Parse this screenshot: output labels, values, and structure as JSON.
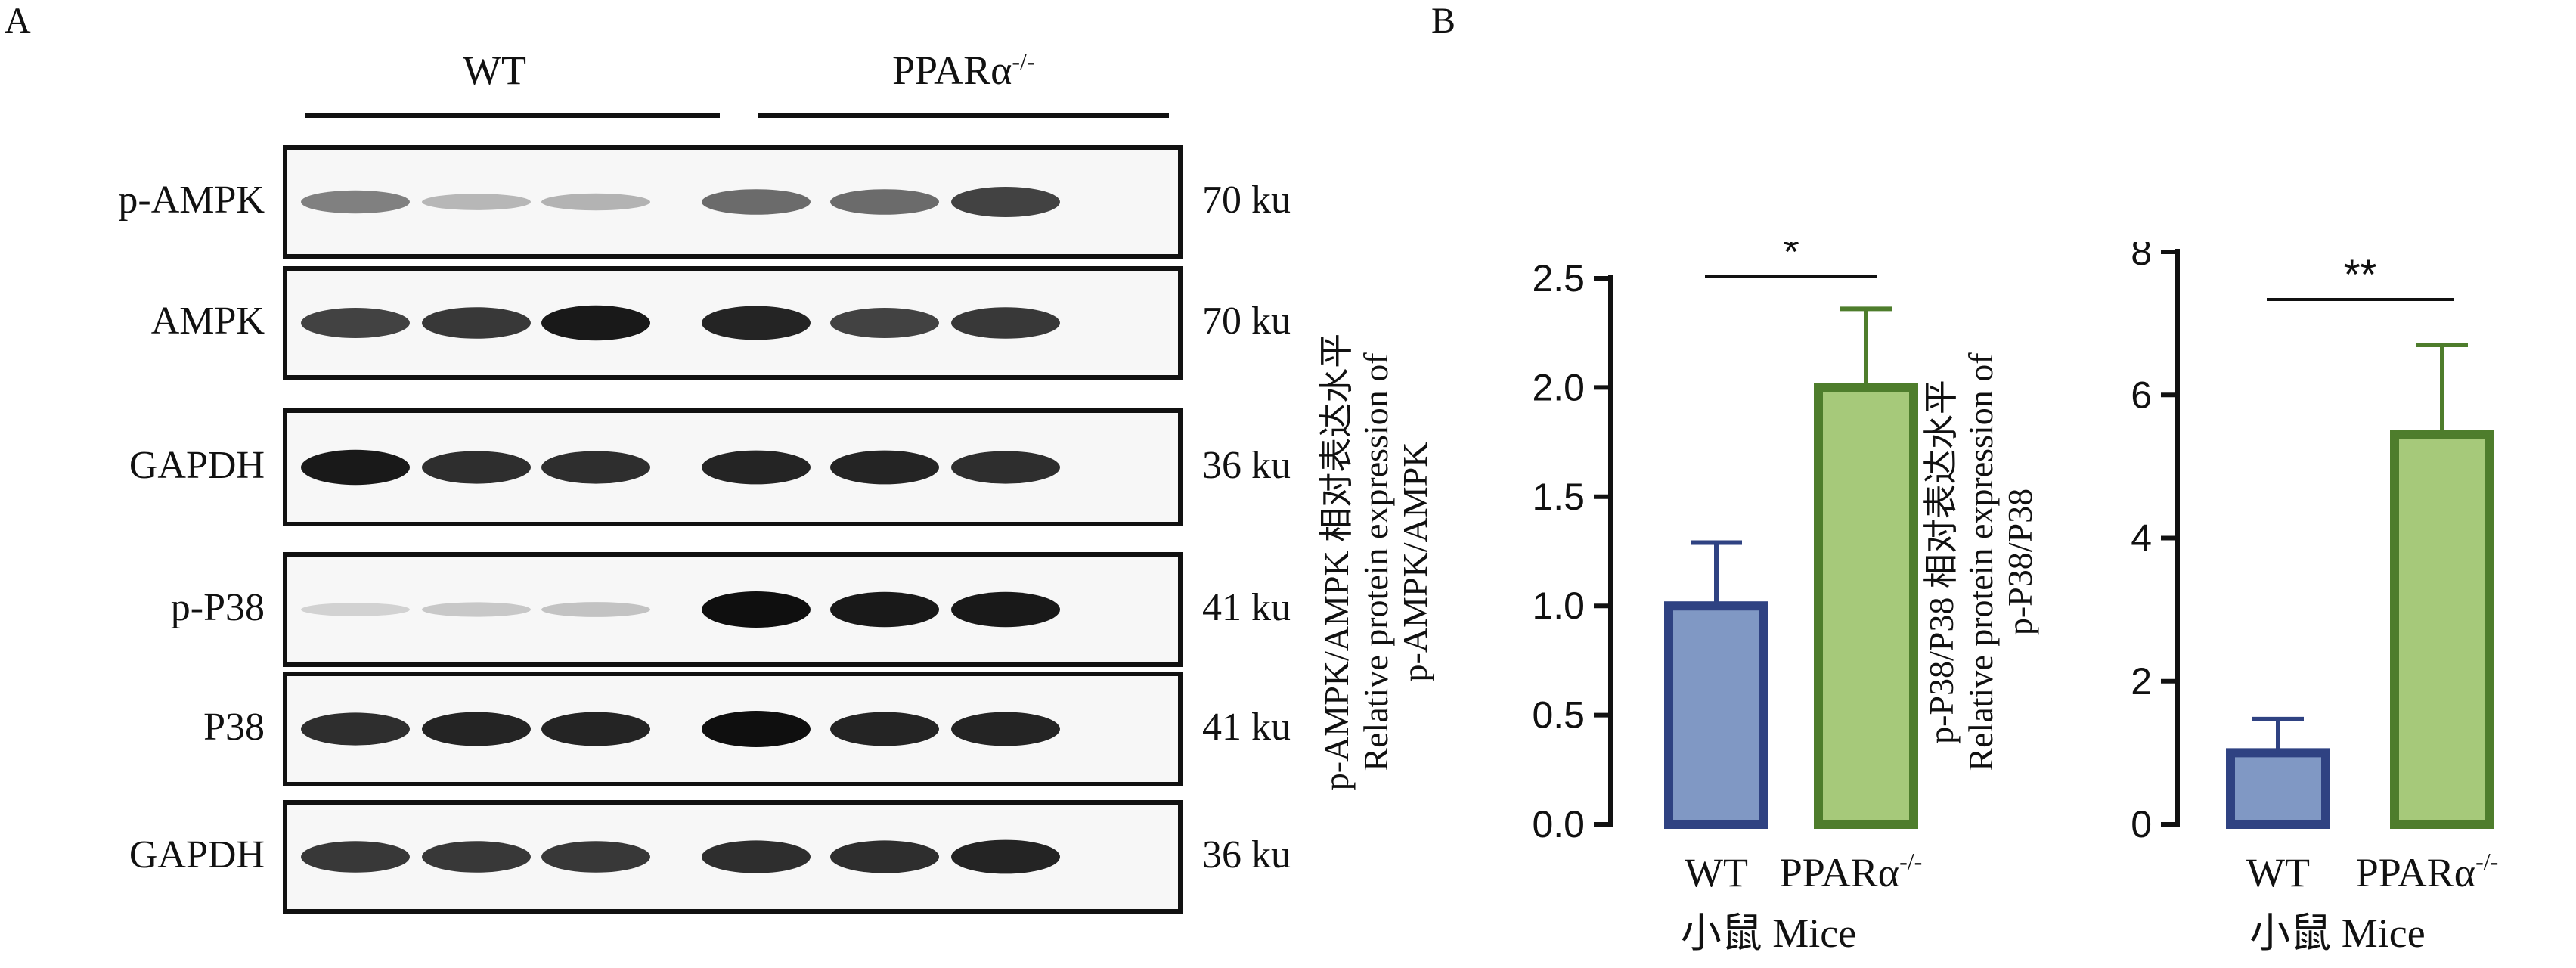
{
  "panels": {
    "a": "A",
    "b": "B"
  },
  "groups": {
    "wt": "WT",
    "ko": "PPARα",
    "ko_sup": "-/-"
  },
  "blots": [
    {
      "label": "p-AMPK",
      "mw": "70 ku",
      "bands": [
        0.45,
        0.18,
        0.2,
        0.55,
        0.55,
        0.75
      ]
    },
    {
      "label": "AMPK",
      "mw": "70 ku",
      "bands": [
        0.75,
        0.8,
        0.95,
        0.9,
        0.75,
        0.8
      ]
    },
    {
      "label": "GAPDH",
      "mw": "36 ku",
      "bands": [
        0.95,
        0.85,
        0.85,
        0.9,
        0.9,
        0.85
      ]
    },
    {
      "label": "p-P38",
      "mw": "41 ku",
      "bands": [
        0.05,
        0.1,
        0.12,
        1.0,
        0.95,
        0.95
      ]
    },
    {
      "label": "P38",
      "mw": "41 ku",
      "bands": [
        0.85,
        0.9,
        0.9,
        1.0,
        0.9,
        0.9
      ]
    },
    {
      "label": "GAPDH",
      "mw": "36 ku",
      "bands": [
        0.8,
        0.8,
        0.8,
        0.85,
        0.85,
        0.9
      ]
    }
  ],
  "chart_data": [
    {
      "type": "bar",
      "categories": [
        "WT",
        "PPARα-/-"
      ],
      "values": [
        1.0,
        2.0
      ],
      "errors": [
        0.29,
        0.36
      ],
      "colors": [
        "#8098c4",
        "#a6c97a"
      ],
      "edge_colors": [
        "#2f4282",
        "#4e7d2c"
      ],
      "ylim": [
        0,
        2.5
      ],
      "yticks": [
        "0.0",
        "0.5",
        "1.0",
        "1.5",
        "2.0",
        "2.5"
      ],
      "ylabel_lines": [
        "p-AMPK/AMPK 相对表达水平",
        "Relative protein expression of",
        "p-AMPK/AMPK"
      ],
      "xlabel": "小鼠 Mice",
      "significance": "*"
    },
    {
      "type": "bar",
      "categories": [
        "WT",
        "PPARα-/-"
      ],
      "values": [
        1.0,
        5.45
      ],
      "errors": [
        0.47,
        1.25
      ],
      "colors": [
        "#8098c4",
        "#a6c97a"
      ],
      "edge_colors": [
        "#2f4282",
        "#4e7d2c"
      ],
      "ylim": [
        0,
        8
      ],
      "yticks": [
        "0",
        "2",
        "4",
        "6",
        "8"
      ],
      "ylabel_lines": [
        "p-P38/P38 相对表达水平",
        "Relative protein expression of",
        "p-P38/P38"
      ],
      "xlabel": "小鼠 Mice",
      "significance": "**"
    }
  ]
}
